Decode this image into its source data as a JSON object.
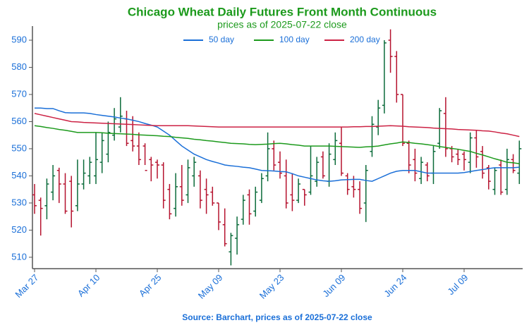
{
  "chart_data": {
    "type": "ohlc",
    "title": "Chicago Wheat Daily Futures Front Month Continuous",
    "subtitle": "prices as of 2025-07-22 close",
    "source": "Source: Barchart, prices as of 2025-07-22 close",
    "categories": [
      "Mar 27",
      null,
      null,
      null,
      null,
      null,
      null,
      null,
      null,
      null,
      "Apr 10",
      null,
      null,
      null,
      null,
      null,
      null,
      null,
      null,
      null,
      "Apr 25",
      null,
      null,
      null,
      null,
      null,
      null,
      null,
      null,
      null,
      "May 09",
      null,
      null,
      null,
      null,
      null,
      null,
      null,
      null,
      null,
      "May 23",
      null,
      null,
      null,
      null,
      null,
      null,
      null,
      null,
      null,
      "Jun 09",
      null,
      null,
      null,
      null,
      null,
      null,
      null,
      null,
      null,
      "Jun 24",
      null,
      null,
      null,
      null,
      null,
      null,
      null,
      null,
      null,
      "Jul 09",
      null,
      null,
      null,
      null,
      null,
      null,
      null,
      null,
      null
    ],
    "ohlc": {
      "open": [
        533,
        531,
        529,
        534,
        542,
        537,
        538,
        529,
        537,
        540,
        540,
        545,
        548,
        555,
        558,
        561,
        553,
        551,
        551,
        546,
        545,
        544,
        535,
        528,
        536,
        533,
        540,
        540,
        535,
        534,
        530,
        522,
        512,
        517,
        524,
        533,
        527,
        531,
        540,
        550,
        545,
        540,
        533,
        531,
        535,
        534,
        538,
        547,
        538,
        546,
        552,
        540,
        536,
        535,
        530,
        549,
        558,
        566,
        590,
        584,
        570,
        552,
        546,
        539,
        544,
        541,
        552,
        563,
        550,
        548,
        548,
        545,
        554,
        549,
        543,
        535,
        544,
        535,
        546,
        541
      ],
      "high": [
        537,
        532,
        539,
        544,
        543,
        541,
        540,
        546,
        546,
        547,
        556,
        556,
        560,
        565,
        569,
        564,
        562,
        556,
        552,
        547,
        546,
        545,
        537,
        541,
        544,
        546,
        547,
        542,
        539,
        536,
        530,
        528,
        519,
        525,
        533,
        535,
        536,
        541,
        556,
        553,
        549,
        546,
        541,
        539,
        535,
        551,
        547,
        549,
        552,
        556,
        558,
        541,
        540,
        538,
        544,
        562,
        568,
        590,
        594,
        586,
        570,
        553,
        550,
        547,
        545,
        551,
        565,
        569,
        551,
        550,
        549,
        556,
        557,
        551,
        544,
        543,
        546,
        550,
        548,
        553
      ],
      "low": [
        526,
        518,
        524,
        531,
        530,
        526,
        521,
        527,
        535,
        537,
        537,
        541,
        545,
        553,
        556,
        551,
        549,
        544,
        544,
        538,
        539,
        528,
        524,
        525,
        529,
        530,
        536,
        528,
        526,
        529,
        520,
        514,
        507,
        511,
        522,
        522,
        525,
        530,
        538,
        542,
        539,
        528,
        527,
        530,
        529,
        533,
        536,
        539,
        536,
        544,
        540,
        533,
        532,
        526,
        523,
        547,
        555,
        563,
        578,
        567,
        551,
        541,
        538,
        537,
        538,
        537,
        550,
        547,
        545,
        544,
        542,
        541,
        543,
        539,
        535,
        533,
        533,
        533,
        541,
        537
      ],
      "close": [
        529,
        528,
        537,
        540,
        537,
        527,
        527,
        537,
        541,
        545,
        546,
        553,
        556,
        561,
        562,
        552,
        551,
        546,
        542,
        544,
        544,
        531,
        526,
        536,
        531,
        543,
        545,
        531,
        533,
        530,
        523,
        515,
        518,
        522,
        531,
        526,
        534,
        539,
        550,
        544,
        541,
        530,
        531,
        537,
        533,
        540,
        545,
        540,
        548,
        553,
        541,
        535,
        535,
        528,
        542,
        559,
        565,
        589,
        584,
        570,
        552,
        544,
        541,
        545,
        540,
        549,
        564,
        550,
        547,
        546,
        546,
        554,
        547,
        541,
        538,
        542,
        534,
        546,
        542,
        550
      ],
      "up_color": "#0b6b3a",
      "down_color": "#b5122e"
    },
    "series": [
      {
        "name": "50 day",
        "color": "#1a6fd8",
        "values": [
          565,
          565,
          564.8,
          564.8,
          564,
          563.3,
          563.2,
          563.2,
          563.2,
          563,
          562.6,
          562.3,
          562,
          561.7,
          561.3,
          561,
          560.5,
          560,
          559.3,
          558.7,
          558,
          556.5,
          555,
          553,
          551,
          549.5,
          548,
          547,
          546,
          545.3,
          544.7,
          544,
          543.7,
          543.5,
          543.2,
          543,
          542.5,
          542,
          541.9,
          541.8,
          541.6,
          541.5,
          540.8,
          540,
          539.5,
          539,
          538.5,
          538.2,
          538,
          538.2,
          538.5,
          538.6,
          538.7,
          538.7,
          538.3,
          538,
          539,
          540,
          541,
          541.7,
          542,
          542,
          542,
          541.5,
          541,
          541,
          541,
          541,
          541,
          541,
          541.2,
          541.6,
          542,
          542.3,
          542.7,
          543,
          543,
          543,
          543,
          543.2
        ]
      },
      {
        "name": "100 day",
        "color": "#1c9a1c",
        "values": [
          558.5,
          558.2,
          557.8,
          557.5,
          557.1,
          556.8,
          556.4,
          556,
          556,
          556,
          556,
          555.9,
          555.7,
          555.6,
          555.5,
          555.4,
          555.3,
          555.1,
          555,
          554.9,
          554.8,
          554.6,
          554.5,
          554.2,
          554,
          553.8,
          553.5,
          553.3,
          553,
          552.8,
          552.5,
          552.3,
          552,
          551.9,
          551.8,
          551.6,
          551.5,
          551.6,
          551.7,
          551.9,
          552,
          551.8,
          551.5,
          551.3,
          551,
          551,
          551,
          551,
          551,
          550.9,
          550.8,
          550.7,
          550.6,
          550.5,
          550.7,
          550.8,
          551,
          551.4,
          551.8,
          552.1,
          552.5,
          552.3,
          552,
          551.8,
          551.5,
          551.2,
          550.8,
          550.5,
          550.1,
          549.8,
          549.4,
          549,
          548.3,
          547.7,
          547,
          546.3,
          545.7,
          545,
          544.8,
          544.5
        ]
      },
      {
        "name": "200 day",
        "color": "#cc2244",
        "values": [
          563,
          562.5,
          562,
          561.5,
          561,
          560.5,
          560,
          559.9,
          559.7,
          559.6,
          559.5,
          559.4,
          559.3,
          559.2,
          559.1,
          559,
          558.9,
          558.8,
          558.7,
          558.6,
          558.5,
          558.5,
          558.5,
          558.5,
          558.5,
          558.5,
          558.4,
          558.3,
          558.2,
          558.1,
          558,
          558,
          558,
          558,
          558,
          558,
          558,
          558,
          558,
          558,
          558,
          558,
          558,
          558,
          558,
          558,
          558,
          558,
          558,
          558,
          558,
          558,
          558.1,
          558.1,
          558.2,
          558.2,
          558.3,
          558.4,
          558.5,
          558.4,
          558.3,
          558.1,
          558,
          557.9,
          557.8,
          557.6,
          557.5,
          557.4,
          557.3,
          557.1,
          557,
          556.9,
          556.8,
          556.6,
          556.5,
          556.2,
          555.8,
          555.5,
          555,
          554.5
        ]
      }
    ],
    "ylim": [
      505.8,
      595.2
    ],
    "yticks": [
      510,
      520,
      530,
      540,
      550,
      560,
      570,
      580,
      590
    ],
    "legend": "top",
    "grid": false
  }
}
